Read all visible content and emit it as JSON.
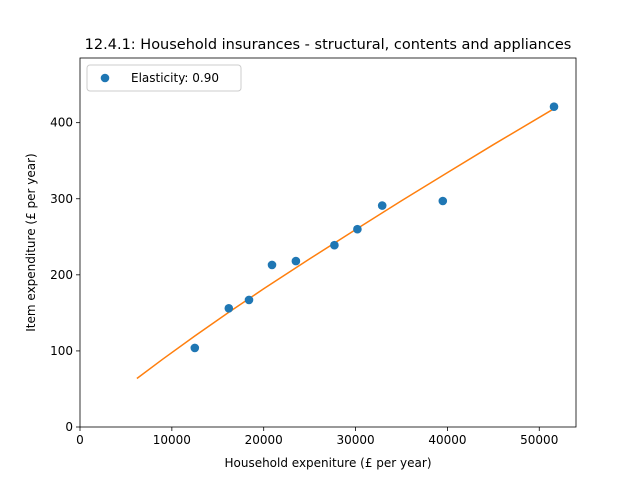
{
  "chart_data": {
    "type": "scatter",
    "title": "12.4.1: Household insurances - structural, contents and appliances",
    "xlabel": "Household expeniture (£ per year)",
    "ylabel": "Item expenditure (£ per year)",
    "xlim": [
      0,
      54000
    ],
    "ylim": [
      0,
      485
    ],
    "xticks": [
      0,
      10000,
      20000,
      30000,
      40000,
      50000
    ],
    "yticks": [
      0,
      100,
      200,
      300,
      400
    ],
    "xtick_labels": [
      "0",
      "10000",
      "20000",
      "30000",
      "40000",
      "50000"
    ],
    "ytick_labels": [
      "0",
      "100",
      "200",
      "300",
      "400"
    ],
    "grid": false,
    "legend": {
      "position": "top-left",
      "entries": [
        "Elasticity: 0.90"
      ]
    },
    "series": [
      {
        "name": "Elasticity: 0.90",
        "kind": "scatter",
        "color": "#1f77b4",
        "x": [
          12500,
          16200,
          18400,
          20900,
          23500,
          27700,
          30200,
          32900,
          39500,
          51600
        ],
        "y": [
          104,
          156,
          167,
          213,
          218,
          239,
          260,
          291,
          297,
          421
        ]
      },
      {
        "kind": "line",
        "color": "#ff7f0e",
        "x": [
          6200,
          9000,
          12500,
          16200,
          20000,
          25000,
          30000,
          35000,
          40000,
          45000,
          51600
        ],
        "y": [
          63.7,
          89.1,
          119.6,
          150.7,
          181.6,
          221.0,
          259.5,
          297.3,
          334.4,
          371.0,
          418.4
        ]
      }
    ]
  }
}
